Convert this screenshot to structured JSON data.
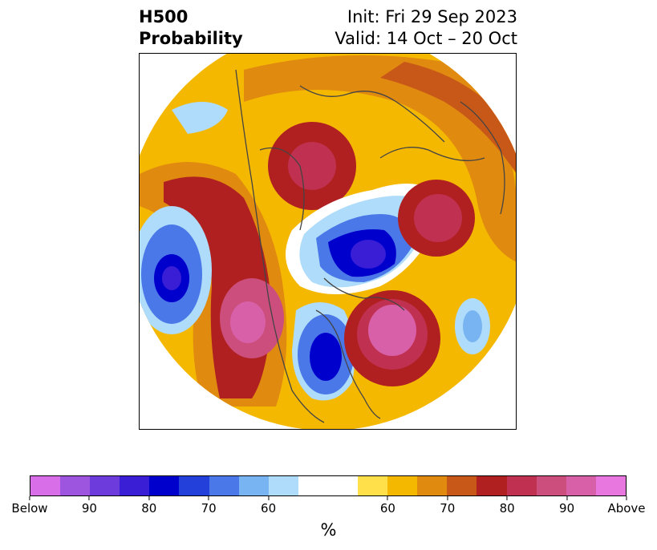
{
  "header": {
    "title_line1": "H500",
    "title_line2": "Probability",
    "init": "Init: Fri 29 Sep 2023",
    "valid": "Valid: 14 Oct – 20 Oct"
  },
  "colorbar": {
    "colors": [
      "#d86ee8",
      "#9d55e0",
      "#6d3bdb",
      "#3a1ed6",
      "#0000cc",
      "#2340da",
      "#4a78e8",
      "#78b4f2",
      "#aedcfa",
      "#ffffff",
      "#ffffff",
      "#ffe04a",
      "#f5b800",
      "#e08a10",
      "#c85818",
      "#b02020",
      "#c03050",
      "#cc4e7c",
      "#d860a8",
      "#e878e0"
    ],
    "tick_labels": [
      "Below",
      "90",
      "80",
      "70",
      "60",
      "60",
      "70",
      "80",
      "90",
      "Above"
    ],
    "unit_label": "%"
  }
}
